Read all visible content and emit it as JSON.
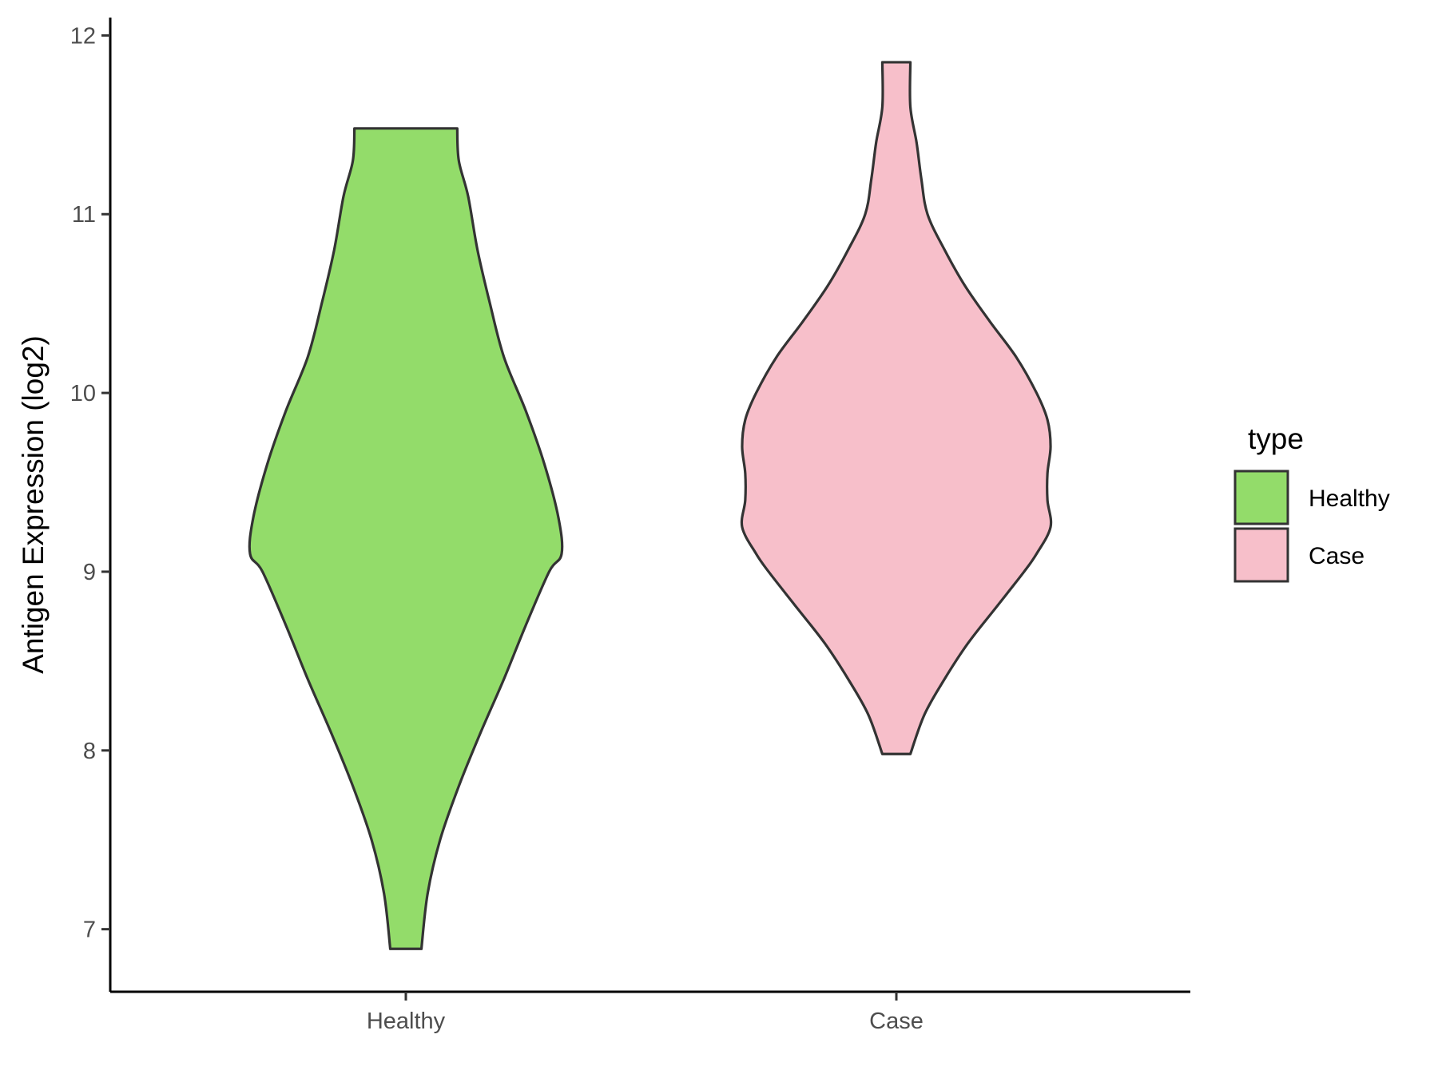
{
  "chart_data": {
    "type": "violin",
    "ylabel": "Antigen Expression (log2)",
    "ylim": [
      6.65,
      12.1
    ],
    "yticks": [
      7,
      8,
      9,
      10,
      11,
      12
    ],
    "categories": [
      "Healthy",
      "Case"
    ],
    "legend": {
      "title": "type",
      "position": "right"
    },
    "grid": false,
    "series": [
      {
        "name": "Healthy",
        "color": "#93DC6A",
        "min": 6.89,
        "max": 11.48,
        "density_profile": [
          [
            6.89,
            0.1
          ],
          [
            7.2,
            0.14
          ],
          [
            7.5,
            0.22
          ],
          [
            7.8,
            0.34
          ],
          [
            8.1,
            0.48
          ],
          [
            8.4,
            0.63
          ],
          [
            8.7,
            0.77
          ],
          [
            9.0,
            0.92
          ],
          [
            9.1,
            1.0
          ],
          [
            9.3,
            0.98
          ],
          [
            9.6,
            0.89
          ],
          [
            9.9,
            0.77
          ],
          [
            10.2,
            0.63
          ],
          [
            10.5,
            0.54
          ],
          [
            10.8,
            0.46
          ],
          [
            11.1,
            0.4
          ],
          [
            11.3,
            0.34
          ],
          [
            11.48,
            0.33
          ]
        ]
      },
      {
        "name": "Case",
        "color": "#F7BFCA",
        "min": 7.98,
        "max": 11.85,
        "density_profile": [
          [
            7.98,
            0.09
          ],
          [
            8.2,
            0.18
          ],
          [
            8.4,
            0.31
          ],
          [
            8.6,
            0.46
          ],
          [
            8.8,
            0.64
          ],
          [
            9.0,
            0.82
          ],
          [
            9.1,
            0.9
          ],
          [
            9.25,
            0.99
          ],
          [
            9.4,
            0.97
          ],
          [
            9.55,
            0.97
          ],
          [
            9.7,
            0.99
          ],
          [
            9.85,
            0.97
          ],
          [
            10.0,
            0.9
          ],
          [
            10.2,
            0.77
          ],
          [
            10.4,
            0.6
          ],
          [
            10.6,
            0.44
          ],
          [
            10.8,
            0.31
          ],
          [
            11.0,
            0.2
          ],
          [
            11.2,
            0.16
          ],
          [
            11.4,
            0.13
          ],
          [
            11.6,
            0.09
          ],
          [
            11.85,
            0.09
          ]
        ]
      }
    ]
  }
}
